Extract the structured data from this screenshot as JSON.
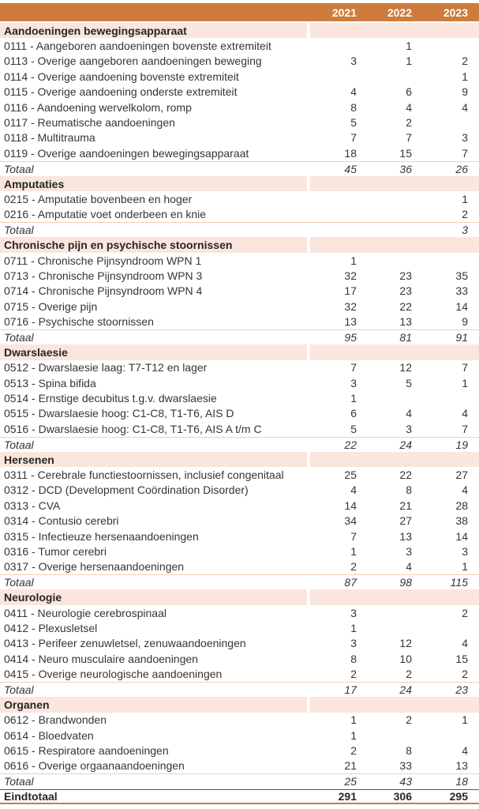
{
  "header": {
    "years": [
      "2021",
      "2022",
      "2023"
    ]
  },
  "colors": {
    "header_bg": "#CD7C3D",
    "header_text": "#FFFFFF",
    "section_bg": "#FAE6DC",
    "total_border": "#F2CFB4",
    "grand_border_top": "#565656",
    "grand_border_bottom": "#CD7C3D",
    "body_text": "#353535"
  },
  "table": {
    "sections": [
      {
        "title": "Aandoeningen bewegingsapparaat",
        "rows": [
          {
            "label": "0111 - Aangeboren aandoeningen bovenste extremiteit",
            "values": [
              "",
              "1",
              ""
            ]
          },
          {
            "label": "0113 - Overige aangeboren aandoeningen beweging",
            "values": [
              "3",
              "1",
              "2"
            ]
          },
          {
            "label": "0114 - Overige aandoening bovenste extremiteit",
            "values": [
              "",
              "",
              "1"
            ]
          },
          {
            "label": "0115 - Overige aandoening onderste extremiteit",
            "values": [
              "4",
              "6",
              "9"
            ]
          },
          {
            "label": "0116 - Aandoening wervelkolom, romp",
            "values": [
              "8",
              "4",
              "4"
            ]
          },
          {
            "label": "0117 - Reumatische aandoeningen",
            "values": [
              "5",
              "2",
              ""
            ]
          },
          {
            "label": "0118 - Multitrauma",
            "values": [
              "7",
              "7",
              "3"
            ]
          },
          {
            "label": "0119 - Overige aandoeningen bewegingsapparaat",
            "values": [
              "18",
              "15",
              "7"
            ]
          }
        ],
        "total": {
          "label": "Totaal",
          "values": [
            "45",
            "36",
            "26"
          ]
        }
      },
      {
        "title": "Amputaties",
        "rows": [
          {
            "label": "0215 - Amputatie bovenbeen en hoger",
            "values": [
              "",
              "",
              "1"
            ]
          },
          {
            "label": "0216 - Amputatie voet onderbeen en knie",
            "values": [
              "",
              "",
              "2"
            ]
          }
        ],
        "total": {
          "label": "Totaal",
          "values": [
            "",
            "",
            "3"
          ]
        }
      },
      {
        "title": "Chronische pijn en psychische stoornissen",
        "rows": [
          {
            "label": "0711 - Chronische Pijnsyndroom WPN 1",
            "values": [
              "1",
              "",
              ""
            ]
          },
          {
            "label": "0713 - Chronische Pijnsyndroom WPN 3",
            "values": [
              "32",
              "23",
              "35"
            ]
          },
          {
            "label": "0714 - Chronische Pijnsyndroom WPN 4",
            "values": [
              "17",
              "23",
              "33"
            ]
          },
          {
            "label": "0715 - Overige pijn",
            "values": [
              "32",
              "22",
              "14"
            ]
          },
          {
            "label": "0716 - Psychische stoornissen",
            "values": [
              "13",
              "13",
              "9"
            ]
          }
        ],
        "total": {
          "label": "Totaal",
          "values": [
            "95",
            "81",
            "91"
          ]
        }
      },
      {
        "title": "Dwarslaesie",
        "rows": [
          {
            "label": "0512 - Dwarslaesie laag: T7-T12 en lager",
            "values": [
              "7",
              "12",
              "7"
            ]
          },
          {
            "label": "0513 - Spina bifida",
            "values": [
              "3",
              "5",
              "1"
            ]
          },
          {
            "label": "0514 - Ernstige decubitus t.g.v. dwarslaesie",
            "values": [
              "1",
              "",
              ""
            ]
          },
          {
            "label": "0515 - Dwarslaesie hoog: C1-C8, T1-T6, AIS D",
            "values": [
              "6",
              "4",
              "4"
            ]
          },
          {
            "label": "0516 - Dwarslaesie hoog: C1-C8, T1-T6, AIS A t/m C",
            "values": [
              "5",
              "3",
              "7"
            ]
          }
        ],
        "total": {
          "label": "Totaal",
          "values": [
            "22",
            "24",
            "19"
          ]
        }
      },
      {
        "title": "Hersenen",
        "rows": [
          {
            "label": "0311 - Cerebrale functiestoornissen, inclusief congenitaal",
            "values": [
              "25",
              "22",
              "27"
            ]
          },
          {
            "label": "0312 - DCD (Development Coördination Disorder)",
            "values": [
              "4",
              "8",
              "4"
            ]
          },
          {
            "label": "0313 - CVA",
            "values": [
              "14",
              "21",
              "28"
            ]
          },
          {
            "label": "0314 - Contusio cerebri",
            "values": [
              "34",
              "27",
              "38"
            ]
          },
          {
            "label": "0315 - Infectieuze hersenaandoeningen",
            "values": [
              "7",
              "13",
              "14"
            ]
          },
          {
            "label": "0316 - Tumor cerebri",
            "values": [
              "1",
              "3",
              "3"
            ]
          },
          {
            "label": "0317 - Overige hersenaandoeningen",
            "values": [
              "2",
              "4",
              "1"
            ]
          }
        ],
        "total": {
          "label": "Totaal",
          "values": [
            "87",
            "98",
            "115"
          ]
        }
      },
      {
        "title": "Neurologie",
        "rows": [
          {
            "label": "0411 - Neurologie cerebrospinaal",
            "values": [
              "3",
              "",
              "2"
            ]
          },
          {
            "label": "0412 - Plexusletsel",
            "values": [
              "1",
              "",
              ""
            ]
          },
          {
            "label": "0413 - Perifeer zenuwletsel, zenuwaandoeningen",
            "values": [
              "3",
              "12",
              "4"
            ]
          },
          {
            "label": "0414 - Neuro musculaire aandoeningen",
            "values": [
              "8",
              "10",
              "15"
            ]
          },
          {
            "label": "0415 - Overige neurologische aandoeningen",
            "values": [
              "2",
              "2",
              "2"
            ]
          }
        ],
        "total": {
          "label": "Totaal",
          "values": [
            "17",
            "24",
            "23"
          ]
        }
      },
      {
        "title": "Organen",
        "rows": [
          {
            "label": "0612 - Brandwonden",
            "values": [
              "1",
              "2",
              "1"
            ]
          },
          {
            "label": "0614 - Bloedvaten",
            "values": [
              "1",
              "",
              ""
            ]
          },
          {
            "label": "0615 - Respiratore aandoeningen",
            "values": [
              "2",
              "8",
              "4"
            ]
          },
          {
            "label": "0616 - Overige orgaanaandoeningen",
            "values": [
              "21",
              "33",
              "13"
            ]
          }
        ],
        "total": {
          "label": "Totaal",
          "values": [
            "25",
            "43",
            "18"
          ]
        }
      }
    ],
    "grand_total": {
      "label": "Eindtotaal",
      "values": [
        "291",
        "306",
        "295"
      ]
    }
  }
}
